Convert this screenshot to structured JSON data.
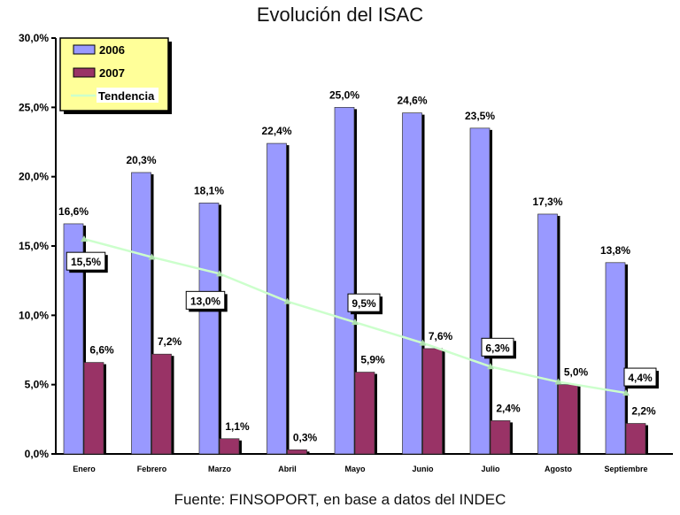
{
  "chart_data": {
    "type": "bar",
    "title": "Evolución del ISAC",
    "source": "Fuente: FINSOPORT, en base a datos del INDEC",
    "categories": [
      "Enero",
      "Febrero",
      "Marzo",
      "Abril",
      "Mayo",
      "Junio",
      "Julio",
      "Agosto",
      "Septiembre"
    ],
    "ylim": [
      0,
      30
    ],
    "yticks": [
      "0,0%",
      "5,0%",
      "10,0%",
      "15,0%",
      "20,0%",
      "25,0%",
      "30,0%"
    ],
    "grid": false,
    "legend_position": "top-left",
    "series": [
      {
        "name": "2006",
        "type": "bar",
        "color": "#9999ff",
        "values": [
          16.6,
          20.3,
          18.1,
          22.4,
          25.0,
          24.6,
          23.5,
          17.3,
          13.8
        ],
        "labels": [
          "16,6%",
          "20,3%",
          "18,1%",
          "22,4%",
          "25,0%",
          "24,6%",
          "23,5%",
          "17,3%",
          "13,8%"
        ]
      },
      {
        "name": "2007",
        "type": "bar",
        "color": "#993366",
        "values": [
          6.6,
          7.2,
          1.1,
          0.3,
          5.9,
          7.6,
          2.4,
          5.0,
          2.2
        ],
        "labels": [
          "6,6%",
          "7,2%",
          "1,1%",
          "0,3%",
          "5,9%",
          "7,6%",
          "2,4%",
          "5,0%",
          "2,2%"
        ]
      },
      {
        "name": "Tendencia",
        "type": "line",
        "color": "#ccffcc",
        "values": [
          15.5,
          14.2,
          13.0,
          11.0,
          9.5,
          8.0,
          6.3,
          5.2,
          4.4
        ],
        "labels": [
          "15,5%",
          null,
          "13,0%",
          null,
          "9,5%",
          null,
          "6,3%",
          null,
          "4,4%"
        ]
      }
    ]
  }
}
